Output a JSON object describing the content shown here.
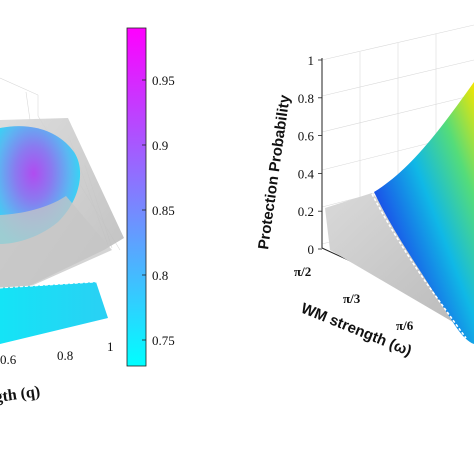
{
  "chart_data": [
    {
      "type": "surface3d",
      "panel": "left",
      "x_ticks": [
        "0.6",
        "0.8",
        "1"
      ],
      "x_axis_label_fragment": "gth (q)",
      "colorbar": {
        "ticks": [
          "0.95",
          "0.9",
          "0.85",
          "0.8",
          "0.75"
        ],
        "tick_values": [
          0.95,
          0.9,
          0.85,
          0.8,
          0.75
        ],
        "range": [
          0.73,
          0.99
        ],
        "colormap": [
          "#00f0ff",
          "#ff00ff"
        ]
      }
    },
    {
      "type": "surface3d",
      "panel": "right",
      "zlabel": "Protection Probability",
      "xlabel": "WM strength (ω)",
      "z_ticks": [
        "0",
        "0.2",
        "0.4",
        "0.6",
        "0.8",
        "1"
      ],
      "z_tick_values": [
        0,
        0.2,
        0.4,
        0.6,
        0.8,
        1
      ],
      "zlim": [
        0,
        1
      ],
      "x_ticks": [
        "π/2",
        "π/3",
        "π/6"
      ],
      "plane_value": 0.25,
      "colormap": [
        "#0a1a9e",
        "#1a6cff",
        "#00d0e0",
        "#7ee05a",
        "#f6e800"
      ]
    }
  ],
  "colors": {
    "cool_start": "#00ffff",
    "cool_end": "#ff00ff",
    "plane": "#c8c8c8",
    "surface_low": "#1236b8",
    "surface_high": "#f2e600"
  }
}
